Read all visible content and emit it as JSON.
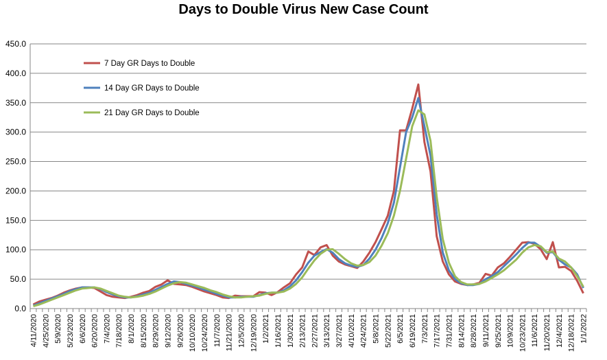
{
  "chart_data": {
    "type": "line",
    "title": "Days to Double Virus New Case Count",
    "xlabel": "",
    "ylabel": "",
    "ylim": [
      0,
      450
    ],
    "y_ticks": [
      "0.0",
      "50.0",
      "100.0",
      "150.0",
      "200.0",
      "250.0",
      "300.0",
      "350.0",
      "400.0",
      "450.0"
    ],
    "grid": true,
    "legend_position": "top-left",
    "x_tick_labels": [
      "4/11/2020",
      "4/25/2020",
      "5/9/2020",
      "5/23/2020",
      "6/6/2020",
      "6/20/2020",
      "7/4/2020",
      "7/18/2020",
      "8/1/2020",
      "8/15/2020",
      "8/29/2020",
      "9/12/2020",
      "9/26/2020",
      "10/10/2020",
      "10/24/2020",
      "11/7/2020",
      "11/21/2020",
      "12/5/2020",
      "12/19/2020",
      "1/2/2021",
      "1/16/2021",
      "1/30/2021",
      "2/13/2021",
      "2/27/2021",
      "3/13/2021",
      "3/27/2021",
      "4/10/2021",
      "4/24/2021",
      "5/8/2021",
      "5/22/2021",
      "6/5/2021",
      "6/19/2021",
      "7/3/2021",
      "7/17/2021",
      "7/31/2021",
      "8/14/2021",
      "8/28/2021",
      "9/11/2021",
      "9/25/2021",
      "10/9/2021",
      "10/23/2021",
      "11/6/2021",
      "11/20/2021",
      "12/4/2021",
      "12/18/2021",
      "1/1/2022"
    ],
    "series": [
      {
        "name": "7 Day GR Days to Double",
        "color": "#C0504D",
        "values": [
          7,
          12,
          15,
          18,
          22,
          27,
          31,
          34,
          36,
          36,
          35,
          29,
          23,
          20,
          19,
          18,
          20,
          23,
          27,
          30,
          37,
          41,
          48,
          42,
          41,
          40,
          37,
          33,
          29,
          26,
          23,
          19,
          18,
          22,
          21,
          21,
          21,
          28,
          27,
          23,
          28,
          36,
          43,
          58,
          70,
          97,
          91,
          104,
          108,
          90,
          80,
          75,
          72,
          69,
          80,
          95,
          113,
          135,
          158,
          200,
          303,
          303,
          340,
          381,
          283,
          233,
          123,
          80,
          58,
          46,
          42,
          40,
          41,
          44,
          59,
          56,
          70,
          77,
          88,
          100,
          112,
          113,
          110,
          101,
          84,
          113,
          70,
          71,
          64,
          47,
          26
        ]
      },
      {
        "name": "14 Day GR Days to Double",
        "color": "#4F81BD",
        "values": [
          5,
          9,
          13,
          17,
          21,
          25,
          30,
          33,
          36,
          36,
          36,
          33,
          28,
          24,
          21,
          19,
          19,
          21,
          24,
          27,
          32,
          37,
          42,
          46,
          45,
          42,
          39,
          36,
          32,
          29,
          25,
          22,
          19,
          19,
          20,
          20,
          20,
          23,
          26,
          27,
          27,
          31,
          38,
          48,
          62,
          78,
          90,
          96,
          101,
          95,
          84,
          77,
          73,
          71,
          74,
          85,
          100,
          120,
          145,
          180,
          240,
          300,
          325,
          358,
          310,
          260,
          160,
          95,
          65,
          50,
          43,
          40,
          40,
          42,
          50,
          55,
          62,
          72,
          82,
          92,
          103,
          112,
          112,
          105,
          95,
          96,
          83,
          75,
          70,
          58,
          35
        ]
      },
      {
        "name": "21 Day GR Days to Double",
        "color": "#9BBB59",
        "values": [
          4,
          7,
          11,
          15,
          19,
          23,
          27,
          31,
          34,
          35,
          36,
          34,
          30,
          26,
          22,
          20,
          19,
          20,
          22,
          25,
          29,
          34,
          39,
          43,
          45,
          44,
          41,
          38,
          35,
          31,
          28,
          24,
          21,
          19,
          19,
          20,
          21,
          22,
          25,
          27,
          27,
          29,
          34,
          42,
          53,
          68,
          82,
          93,
          100,
          101,
          93,
          84,
          77,
          73,
          74,
          79,
          90,
          107,
          128,
          158,
          200,
          255,
          310,
          337,
          330,
          285,
          190,
          118,
          78,
          55,
          45,
          41,
          41,
          42,
          46,
          52,
          58,
          65,
          74,
          83,
          95,
          104,
          108,
          106,
          96,
          97,
          85,
          80,
          70,
          55,
          37
        ]
      }
    ]
  }
}
